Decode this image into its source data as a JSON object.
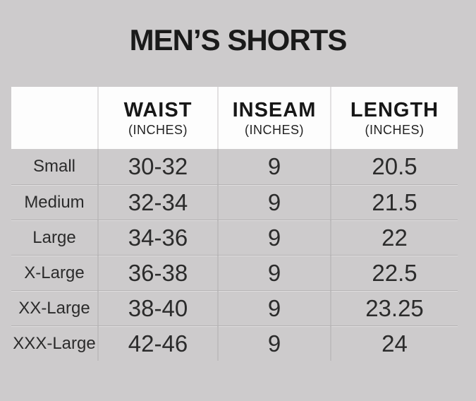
{
  "page": {
    "title": "MEN’S SHORTS"
  },
  "colors": {
    "background": "#cdcbcc",
    "header_background": "#fdfdfd",
    "text": "#1a1a1a",
    "body_grid_line": "#bfbdbe",
    "header_grid_line": "#e2e0e1",
    "row_separator": "#b5b3b4"
  },
  "table": {
    "columns": [
      {
        "label": "",
        "sub": ""
      },
      {
        "label": "WAIST",
        "sub": "(INCHES)"
      },
      {
        "label": "INSEAM",
        "sub": "(INCHES)"
      },
      {
        "label": "LENGTH",
        "sub": "(INCHES)"
      }
    ],
    "rows": [
      {
        "size": "Small",
        "waist": "30-32",
        "inseam": "9",
        "length": "20.5"
      },
      {
        "size": "Medium",
        "waist": "32-34",
        "inseam": "9",
        "length": "21.5"
      },
      {
        "size": "Large",
        "waist": "34-36",
        "inseam": "9",
        "length": "22"
      },
      {
        "size": "X-Large",
        "waist": "36-38",
        "inseam": "9",
        "length": "22.5"
      },
      {
        "size": "XX-Large",
        "waist": "38-40",
        "inseam": "9",
        "length": "23.25"
      },
      {
        "size": "XXX-Large",
        "waist": "42-46",
        "inseam": "9",
        "length": "24"
      }
    ]
  },
  "chart_data": {
    "type": "table",
    "title": "MEN’S SHORTS",
    "columns": [
      "",
      "WAIST (INCHES)",
      "INSEAM (INCHES)",
      "LENGTH (INCHES)"
    ],
    "rows": [
      [
        "Small",
        "30-32",
        "9",
        "20.5"
      ],
      [
        "Medium",
        "32-34",
        "9",
        "21.5"
      ],
      [
        "Large",
        "34-36",
        "9",
        "22"
      ],
      [
        "X-Large",
        "36-38",
        "9",
        "22.5"
      ],
      [
        "XX-Large",
        "38-40",
        "9",
        "23.25"
      ],
      [
        "XXX-Large",
        "42-46",
        "9",
        "24"
      ]
    ]
  }
}
